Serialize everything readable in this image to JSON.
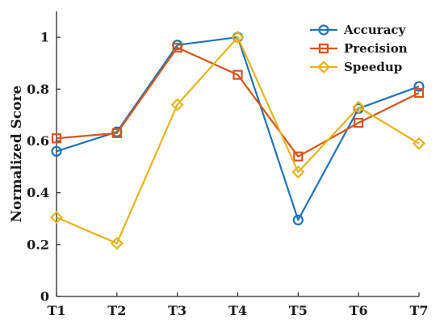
{
  "chart_data": {
    "type": "line",
    "title": "",
    "xlabel": "",
    "ylabel": "Normalized Score",
    "categories": [
      "T1",
      "T2",
      "T3",
      "T4",
      "T5",
      "T6",
      "T7"
    ],
    "ylim": [
      0,
      1.1
    ],
    "yticks": [
      0,
      0.2,
      0.4,
      0.6,
      0.8,
      1
    ],
    "ytick_labels": [
      "0",
      "0.2",
      "0.4",
      "0.6",
      "0.8",
      "1"
    ],
    "grid": false,
    "legend_position": "top-right",
    "series": [
      {
        "name": "Accuracy",
        "marker": "circle",
        "color": "#1f72b8",
        "values": [
          0.56,
          0.635,
          0.97,
          1.0,
          0.295,
          0.725,
          0.81
        ]
      },
      {
        "name": "Precision",
        "marker": "square",
        "color": "#d9541a",
        "values": [
          0.61,
          0.63,
          0.96,
          0.855,
          0.54,
          0.67,
          0.785
        ]
      },
      {
        "name": "Speedup",
        "marker": "diamond",
        "color": "#e6b31e",
        "values": [
          0.305,
          0.205,
          0.74,
          1.0,
          0.48,
          0.73,
          0.59
        ]
      }
    ]
  }
}
